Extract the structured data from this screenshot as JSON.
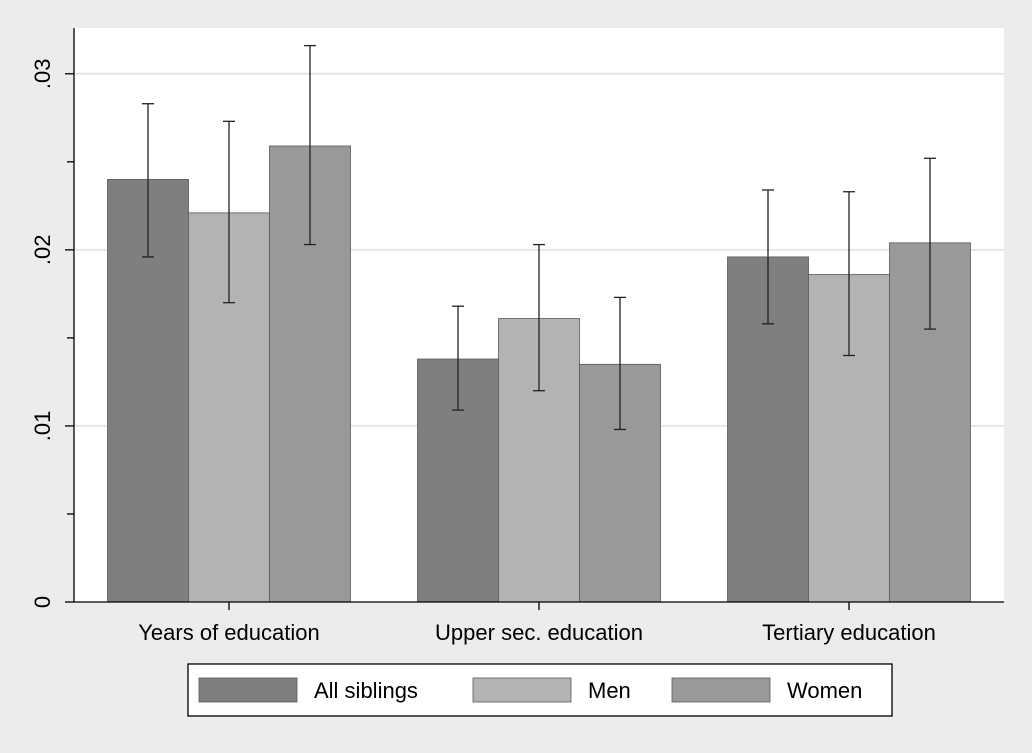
{
  "chart_data": {
    "type": "bar",
    "categories": [
      "Years of education",
      "Upper sec. education",
      "Tertiary education"
    ],
    "series": [
      {
        "name": "All siblings",
        "color": "#7f7f7f",
        "values": [
          0.024,
          0.0138,
          0.0196
        ],
        "ci_low": [
          0.0196,
          0.0109,
          0.0158
        ],
        "ci_high": [
          0.0283,
          0.0168,
          0.0234
        ]
      },
      {
        "name": "Men",
        "color": "#b3b3b3",
        "values": [
          0.0221,
          0.0161,
          0.0186
        ],
        "ci_low": [
          0.017,
          0.012,
          0.014
        ],
        "ci_high": [
          0.0273,
          0.0203,
          0.0233
        ]
      },
      {
        "name": "Women",
        "color": "#999999",
        "values": [
          0.0259,
          0.0135,
          0.0204
        ],
        "ci_low": [
          0.0203,
          0.0098,
          0.0155
        ],
        "ci_high": [
          0.0316,
          0.0173,
          0.0252
        ]
      }
    ],
    "ylim": [
      0,
      0.0326
    ],
    "yticks": [
      {
        "value": 0,
        "label": "0"
      },
      {
        "value": 0.01,
        "label": ".01"
      },
      {
        "value": 0.02,
        "label": ".02"
      },
      {
        "value": 0.03,
        "label": ".03"
      }
    ],
    "ytick_minor": [
      0.005,
      0.015,
      0.025
    ],
    "grid": true,
    "legend_position": "bottom",
    "title": "",
    "xlabel": "",
    "ylabel": ""
  }
}
